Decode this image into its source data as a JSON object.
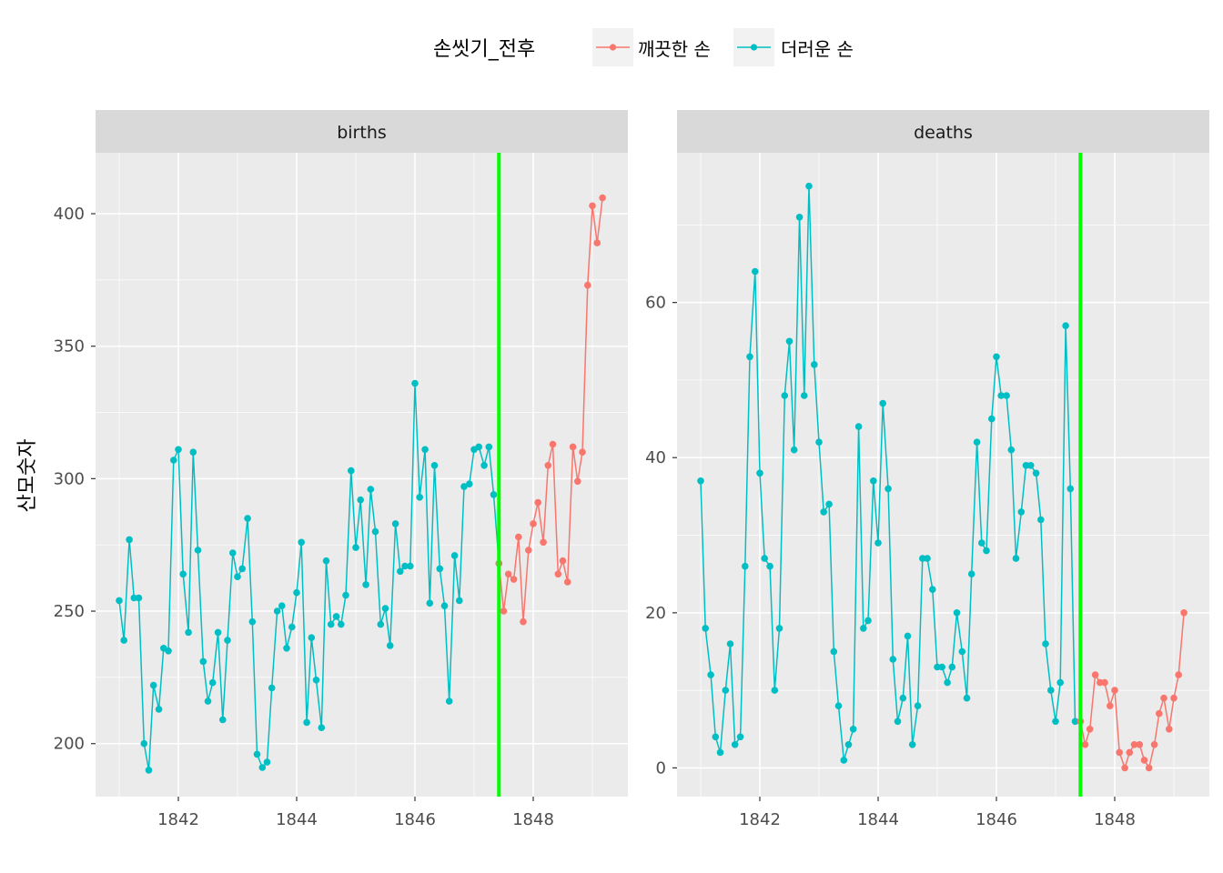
{
  "chart_data": {
    "type": "line",
    "facet_variable": "key",
    "legend": {
      "title": "손씻기_전후",
      "position": "top",
      "items": [
        {
          "label": "깨끗한 손",
          "color": "#F8766D"
        },
        {
          "label": "더러운 손",
          "color": "#00BFC4"
        }
      ]
    },
    "ylabel": "산모숫자",
    "xlabel": "",
    "grid": true,
    "vline": {
      "x": 1847.42,
      "color": "#00FF00"
    },
    "panels": [
      {
        "strip": "births",
        "xlim": [
          1840.6,
          1849.6
        ],
        "ylim": [
          180,
          423
        ],
        "x_ticks": [
          1842,
          1844,
          1846,
          1848
        ],
        "y_ticks": [
          200,
          250,
          300,
          350,
          400
        ],
        "series": [
          {
            "name": "더러운 손",
            "color": "#00BFC4",
            "points": [
              [
                1841.0,
                254
              ],
              [
                1841.08,
                239
              ],
              [
                1841.17,
                277
              ],
              [
                1841.25,
                255
              ],
              [
                1841.33,
                255
              ],
              [
                1841.42,
                200
              ],
              [
                1841.5,
                190
              ],
              [
                1841.58,
                222
              ],
              [
                1841.67,
                213
              ],
              [
                1841.75,
                236
              ],
              [
                1841.83,
                235
              ],
              [
                1841.92,
                307
              ],
              [
                1842.0,
                311
              ],
              [
                1842.08,
                264
              ],
              [
                1842.17,
                242
              ],
              [
                1842.25,
                310
              ],
              [
                1842.33,
                273
              ],
              [
                1842.42,
                231
              ],
              [
                1842.5,
                216
              ],
              [
                1842.58,
                223
              ],
              [
                1842.67,
                242
              ],
              [
                1842.75,
                209
              ],
              [
                1842.83,
                239
              ],
              [
                1842.92,
                272
              ],
              [
                1843.0,
                263
              ],
              [
                1843.08,
                266
              ],
              [
                1843.17,
                285
              ],
              [
                1843.25,
                246
              ],
              [
                1843.33,
                196
              ],
              [
                1843.42,
                191
              ],
              [
                1843.5,
                193
              ],
              [
                1843.58,
                221
              ],
              [
                1843.67,
                250
              ],
              [
                1843.75,
                252
              ],
              [
                1843.83,
                236
              ],
              [
                1843.92,
                244
              ],
              [
                1844.0,
                257
              ],
              [
                1844.08,
                276
              ],
              [
                1844.17,
                208
              ],
              [
                1844.25,
                240
              ],
              [
                1844.33,
                224
              ],
              [
                1844.42,
                206
              ],
              [
                1844.5,
                269
              ],
              [
                1844.58,
                245
              ],
              [
                1844.67,
                248
              ],
              [
                1844.75,
                245
              ],
              [
                1844.83,
                256
              ],
              [
                1844.92,
                303
              ],
              [
                1845.0,
                274
              ],
              [
                1845.08,
                292
              ],
              [
                1845.17,
                260
              ],
              [
                1845.25,
                296
              ],
              [
                1845.33,
                280
              ],
              [
                1845.42,
                245
              ],
              [
                1845.5,
                251
              ],
              [
                1845.58,
                237
              ],
              [
                1845.67,
                283
              ],
              [
                1845.75,
                265
              ],
              [
                1845.83,
                267
              ],
              [
                1845.92,
                267
              ],
              [
                1846.0,
                336
              ],
              [
                1846.08,
                293
              ],
              [
                1846.17,
                311
              ],
              [
                1846.25,
                253
              ],
              [
                1846.33,
                305
              ],
              [
                1846.42,
                266
              ],
              [
                1846.5,
                252
              ],
              [
                1846.58,
                216
              ],
              [
                1846.67,
                271
              ],
              [
                1846.75,
                254
              ],
              [
                1846.83,
                297
              ],
              [
                1846.92,
                298
              ],
              [
                1847.0,
                311
              ],
              [
                1847.08,
                312
              ],
              [
                1847.17,
                305
              ],
              [
                1847.25,
                312
              ],
              [
                1847.33,
                294
              ],
              [
                1847.42,
                268
              ]
            ]
          },
          {
            "name": "깨끗한 손",
            "color": "#F8766D",
            "points": [
              [
                1847.42,
                268
              ],
              [
                1847.5,
                250
              ],
              [
                1847.58,
                264
              ],
              [
                1847.67,
                262
              ],
              [
                1847.75,
                278
              ],
              [
                1847.83,
                246
              ],
              [
                1847.92,
                273
              ],
              [
                1848.0,
                283
              ],
              [
                1848.08,
                291
              ],
              [
                1848.17,
                276
              ],
              [
                1848.25,
                305
              ],
              [
                1848.33,
                313
              ],
              [
                1848.42,
                264
              ],
              [
                1848.5,
                269
              ],
              [
                1848.58,
                261
              ],
              [
                1848.67,
                312
              ],
              [
                1848.75,
                299
              ],
              [
                1848.83,
                310
              ],
              [
                1848.92,
                373
              ],
              [
                1849.0,
                403
              ],
              [
                1849.08,
                389
              ],
              [
                1849.17,
                406
              ]
            ]
          }
        ]
      },
      {
        "strip": "deaths",
        "xlim": [
          1840.6,
          1849.6
        ],
        "ylim": [
          -3.7,
          79.3
        ],
        "x_ticks": [
          1842,
          1844,
          1846,
          1848
        ],
        "y_ticks": [
          0,
          20,
          40,
          60
        ],
        "series": [
          {
            "name": "더러운 손",
            "color": "#00BFC4",
            "points": [
              [
                1841.0,
                37
              ],
              [
                1841.08,
                18
              ],
              [
                1841.17,
                12
              ],
              [
                1841.25,
                4
              ],
              [
                1841.33,
                2
              ],
              [
                1841.42,
                10
              ],
              [
                1841.5,
                16
              ],
              [
                1841.58,
                3
              ],
              [
                1841.67,
                4
              ],
              [
                1841.75,
                26
              ],
              [
                1841.83,
                53
              ],
              [
                1841.92,
                64
              ],
              [
                1842.0,
                38
              ],
              [
                1842.08,
                27
              ],
              [
                1842.17,
                26
              ],
              [
                1842.25,
                10
              ],
              [
                1842.33,
                18
              ],
              [
                1842.42,
                48
              ],
              [
                1842.5,
                55
              ],
              [
                1842.58,
                41
              ],
              [
                1842.67,
                71
              ],
              [
                1842.75,
                48
              ],
              [
                1842.83,
                75
              ],
              [
                1842.92,
                52
              ],
              [
                1843.0,
                42
              ],
              [
                1843.08,
                33
              ],
              [
                1843.17,
                34
              ],
              [
                1843.25,
                15
              ],
              [
                1843.33,
                8
              ],
              [
                1843.42,
                1
              ],
              [
                1843.5,
                3
              ],
              [
                1843.58,
                5
              ],
              [
                1843.67,
                44
              ],
              [
                1843.75,
                18
              ],
              [
                1843.83,
                19
              ],
              [
                1843.92,
                37
              ],
              [
                1844.0,
                29
              ],
              [
                1844.08,
                47
              ],
              [
                1844.17,
                36
              ],
              [
                1844.25,
                14
              ],
              [
                1844.33,
                6
              ],
              [
                1844.42,
                9
              ],
              [
                1844.5,
                17
              ],
              [
                1844.58,
                3
              ],
              [
                1844.67,
                8
              ],
              [
                1844.75,
                27
              ],
              [
                1844.83,
                27
              ],
              [
                1844.92,
                23
              ],
              [
                1845.0,
                13
              ],
              [
                1845.08,
                13
              ],
              [
                1845.17,
                11
              ],
              [
                1845.25,
                13
              ],
              [
                1845.33,
                20
              ],
              [
                1845.42,
                15
              ],
              [
                1845.5,
                9
              ],
              [
                1845.58,
                25
              ],
              [
                1845.67,
                42
              ],
              [
                1845.75,
                29
              ],
              [
                1845.83,
                28
              ],
              [
                1845.92,
                45
              ],
              [
                1846.0,
                53
              ],
              [
                1846.08,
                48
              ],
              [
                1846.17,
                48
              ],
              [
                1846.25,
                41
              ],
              [
                1846.33,
                27
              ],
              [
                1846.42,
                33
              ],
              [
                1846.5,
                39
              ],
              [
                1846.58,
                39
              ],
              [
                1846.67,
                38
              ],
              [
                1846.75,
                32
              ],
              [
                1846.83,
                16
              ],
              [
                1846.92,
                10
              ],
              [
                1847.0,
                6
              ],
              [
                1847.08,
                11
              ],
              [
                1847.17,
                57
              ],
              [
                1847.25,
                36
              ],
              [
                1847.33,
                6
              ],
              [
                1847.42,
                6
              ]
            ]
          },
          {
            "name": "깨끗한 손",
            "color": "#F8766D",
            "points": [
              [
                1847.42,
                6
              ],
              [
                1847.5,
                3
              ],
              [
                1847.58,
                5
              ],
              [
                1847.67,
                12
              ],
              [
                1847.75,
                11
              ],
              [
                1847.83,
                11
              ],
              [
                1847.92,
                8
              ],
              [
                1848.0,
                10
              ],
              [
                1848.08,
                2
              ],
              [
                1848.17,
                0
              ],
              [
                1848.25,
                2
              ],
              [
                1848.33,
                3
              ],
              [
                1848.42,
                3
              ],
              [
                1848.5,
                1
              ],
              [
                1848.58,
                0
              ],
              [
                1848.67,
                3
              ],
              [
                1848.75,
                7
              ],
              [
                1848.83,
                9
              ],
              [
                1848.92,
                5
              ],
              [
                1849.0,
                9
              ],
              [
                1849.08,
                12
              ],
              [
                1849.17,
                20
              ]
            ]
          }
        ]
      }
    ]
  }
}
